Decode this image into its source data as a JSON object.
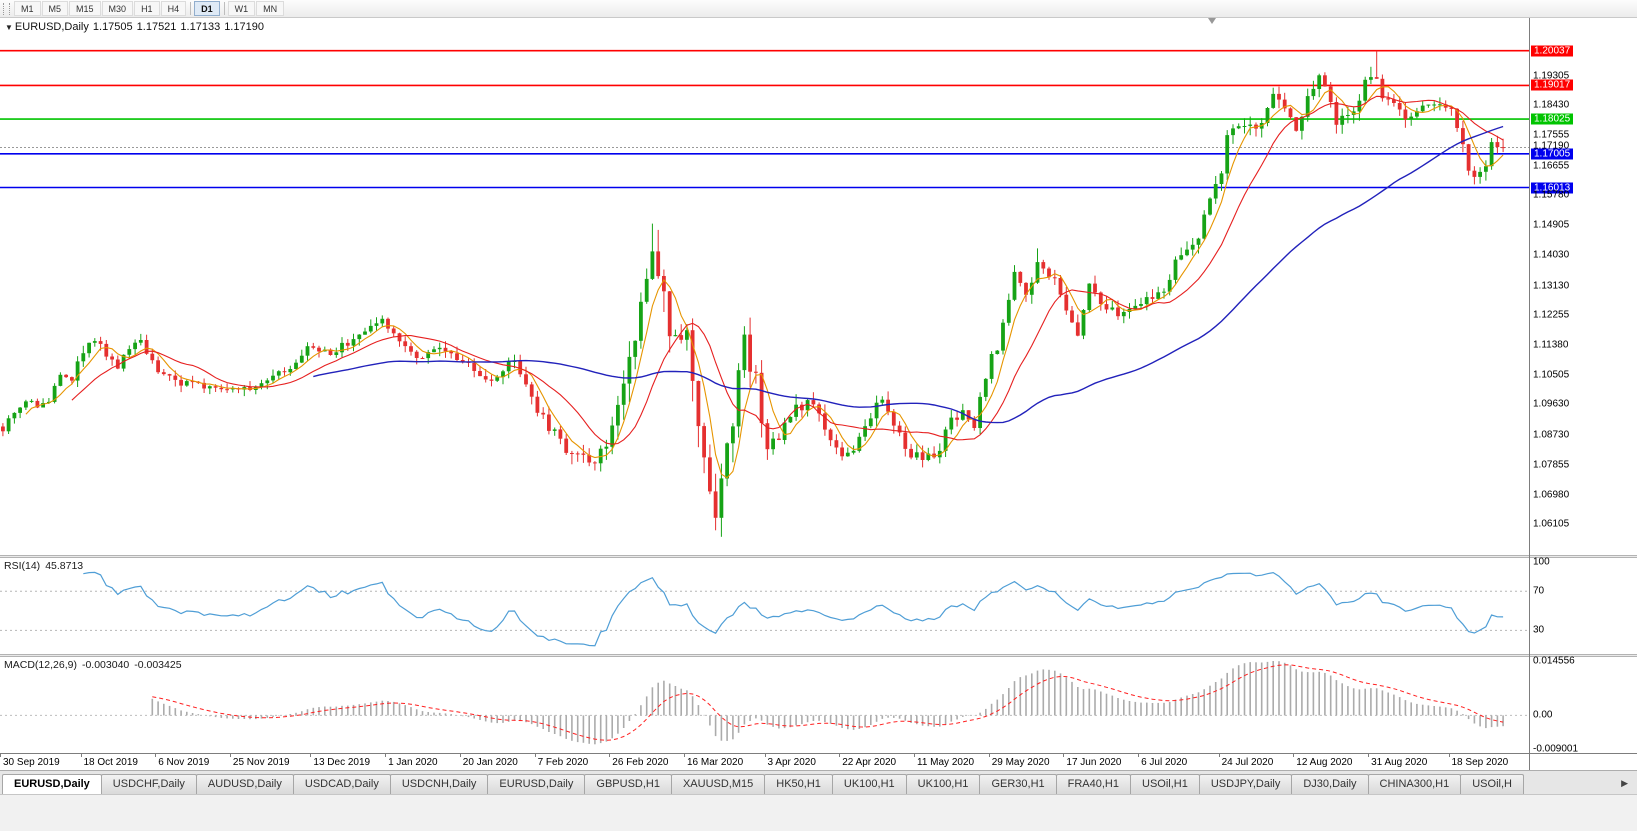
{
  "icons": {
    "chart_dropdown": "▼",
    "tab_scroll_right": "▶"
  },
  "toolbar": {
    "timeframes": [
      "M1",
      "M5",
      "M15",
      "M30",
      "H1",
      "H4",
      "D1",
      "W1",
      "MN"
    ],
    "active_timeframe": "D1",
    "separators_after": [
      "H4",
      "D1"
    ]
  },
  "chart": {
    "symbol_period": "EURUSD,Daily",
    "ohlc": {
      "open": "1.17505",
      "high": "1.17521",
      "low": "1.17133",
      "close": "1.17190"
    },
    "axis": {
      "labels": [
        {
          "text": "1.20037",
          "price": 1.20037,
          "type": "line-red"
        },
        {
          "text": "1.19305",
          "price": 1.19305,
          "type": "tick"
        },
        {
          "text": "1.19017",
          "price": 1.19017,
          "type": "line-red"
        },
        {
          "text": "1.18430",
          "price": 1.1843,
          "type": "tick"
        },
        {
          "text": "1.18025",
          "price": 1.18025,
          "type": "line-green"
        },
        {
          "text": "1.17555",
          "price": 1.17555,
          "type": "tick"
        },
        {
          "text": "1.17190",
          "price": 1.1719,
          "type": "bid"
        },
        {
          "text": "1.17005",
          "price": 1.17005,
          "type": "line-blue"
        },
        {
          "text": "1.16655",
          "price": 1.16655,
          "type": "tick"
        },
        {
          "text": "1.16013",
          "price": 1.16013,
          "type": "line-blue"
        },
        {
          "text": "1.15780",
          "price": 1.1578,
          "type": "tick"
        },
        {
          "text": "1.14905",
          "price": 1.14905,
          "type": "tick"
        },
        {
          "text": "1.14030",
          "price": 1.1403,
          "type": "tick"
        },
        {
          "text": "1.13130",
          "price": 1.1313,
          "type": "tick"
        },
        {
          "text": "1.12255",
          "price": 1.12255,
          "type": "tick"
        },
        {
          "text": "1.11380",
          "price": 1.1138,
          "type": "tick"
        },
        {
          "text": "1.10505",
          "price": 1.10505,
          "type": "tick"
        },
        {
          "text": "1.09630",
          "price": 1.0963,
          "type": "tick"
        },
        {
          "text": "1.08730",
          "price": 1.0873,
          "type": "tick"
        },
        {
          "text": "1.07855",
          "price": 1.07855,
          "type": "tick"
        },
        {
          "text": "1.06980",
          "price": 1.0698,
          "type": "tick"
        },
        {
          "text": "1.06105",
          "price": 1.06105,
          "type": "tick"
        }
      ]
    }
  },
  "rsi_panel": {
    "name": "RSI(14)",
    "value": "45.8713",
    "axis_labels": [
      {
        "text": "100",
        "v": 100
      },
      {
        "text": "70",
        "v": 70
      },
      {
        "text": "30",
        "v": 30
      }
    ]
  },
  "macd_panel": {
    "name": "MACD(12,26,9)",
    "value1": "-0.003040",
    "value2": "-0.003425",
    "axis_labels": [
      {
        "text": "0.014556",
        "v": 0.014556
      },
      {
        "text": "0.00",
        "v": 0
      },
      {
        "text": "-0.009001",
        "v": -0.009001
      }
    ]
  },
  "date_axis": [
    {
      "label": "30 Sep 2019",
      "bar": 0
    },
    {
      "label": "18 Oct 2019",
      "bar": 14
    },
    {
      "label": "6 Nov 2019",
      "bar": 27
    },
    {
      "label": "25 Nov 2019",
      "bar": 40
    },
    {
      "label": "13 Dec 2019",
      "bar": 54
    },
    {
      "label": "1 Jan 2020",
      "bar": 67
    },
    {
      "label": "20 Jan 2020",
      "bar": 80
    },
    {
      "label": "7 Feb 2020",
      "bar": 93
    },
    {
      "label": "26 Feb 2020",
      "bar": 106
    },
    {
      "label": "16 Mar 2020",
      "bar": 119
    },
    {
      "label": "3 Apr 2020",
      "bar": 133
    },
    {
      "label": "22 Apr 2020",
      "bar": 146
    },
    {
      "label": "11 May 2020",
      "bar": 159
    },
    {
      "label": "29 May 2020",
      "bar": 172
    },
    {
      "label": "17 Jun 2020",
      "bar": 185
    },
    {
      "label": "6 Jul 2020",
      "bar": 198
    },
    {
      "label": "24 Jul 2020",
      "bar": 212
    },
    {
      "label": "12 Aug 2020",
      "bar": 225
    },
    {
      "label": "31 Aug 2020",
      "bar": 238
    },
    {
      "label": "18 Sep 2020",
      "bar": 252
    }
  ],
  "tabs": {
    "items": [
      {
        "label": "EURUSD,Daily",
        "active": true
      },
      {
        "label": "USDCHF,Daily",
        "active": false
      },
      {
        "label": "AUDUSD,Daily",
        "active": false
      },
      {
        "label": "USDCAD,Daily",
        "active": false
      },
      {
        "label": "USDCNH,Daily",
        "active": false
      },
      {
        "label": "EURUSD,Daily",
        "active": false
      },
      {
        "label": "GBPUSD,H1",
        "active": false
      },
      {
        "label": "XAUUSD,M15",
        "active": false
      },
      {
        "label": "HK50,H1",
        "active": false
      },
      {
        "label": "UK100,H1",
        "active": false
      },
      {
        "label": "UK100,H1",
        "active": false
      },
      {
        "label": "GER30,H1",
        "active": false
      },
      {
        "label": "FRA40,H1",
        "active": false
      },
      {
        "label": "USOil,H1",
        "active": false
      },
      {
        "label": "USDJPY,Daily",
        "active": false
      },
      {
        "label": "DJ30,Daily",
        "active": false
      },
      {
        "label": "CHINA300,H1",
        "active": false
      },
      {
        "label": "USOil,H",
        "active": false
      }
    ]
  },
  "chart_data": {
    "type": "candlestick",
    "symbol": "EURUSD",
    "period": "Daily",
    "bars": 262,
    "price_range": {
      "max": 1.21,
      "min": 1.052
    },
    "colors": {
      "up": "#16a316",
      "down": "#e53030",
      "ma_fast": "#e69500",
      "ma_mid": "#e62020",
      "ma_slow": "#2222bb",
      "rsi": "#4f9ed6",
      "rsi_level": "#b6b6b6",
      "macd_hist": "#ababab",
      "macd_signal": "#ff2020",
      "macd_zero": "#bdbdbd",
      "hline_red": "#ff0000",
      "hline_green": "#00c400",
      "hline_blue": "#0000ee",
      "bid_line": "#999999"
    },
    "close_anchors": [
      [
        0,
        1.0898
      ],
      [
        1,
        1.0934
      ],
      [
        4,
        1.096
      ],
      [
        8,
        1.097
      ],
      [
        9,
        1.1004
      ],
      [
        10,
        1.1041
      ],
      [
        12,
        1.1035
      ],
      [
        14,
        1.1124
      ],
      [
        16,
        1.1149
      ],
      [
        20,
        1.108
      ],
      [
        24,
        1.1152
      ],
      [
        27,
        1.1068
      ],
      [
        31,
        1.1021
      ],
      [
        36,
        1.1021
      ],
      [
        40,
        1.1013
      ],
      [
        44,
        1.1018
      ],
      [
        49,
        1.106
      ],
      [
        53,
        1.113
      ],
      [
        54,
        1.1122
      ],
      [
        57,
        1.1112
      ],
      [
        63,
        1.1177
      ],
      [
        66,
        1.121
      ],
      [
        68,
        1.1172
      ],
      [
        72,
        1.1103
      ],
      [
        76,
        1.1128
      ],
      [
        80,
        1.1095
      ],
      [
        84,
        1.1024
      ],
      [
        89,
        1.1093
      ],
      [
        93,
        1.0946
      ],
      [
        98,
        1.083
      ],
      [
        102,
        1.0786
      ],
      [
        106,
        1.088
      ],
      [
        108,
        1.1026
      ],
      [
        110,
        1.1173
      ],
      [
        113,
        1.1449
      ],
      [
        115,
        1.1271
      ],
      [
        116,
        1.1184
      ],
      [
        119,
        1.1182
      ],
      [
        121,
        1.0915
      ],
      [
        123,
        1.0693
      ],
      [
        124,
        1.0637
      ],
      [
        125,
        1.0726
      ],
      [
        128,
        1.103
      ],
      [
        129,
        1.1141
      ],
      [
        131,
        1.1031
      ],
      [
        133,
        1.0808
      ],
      [
        137,
        1.093
      ],
      [
        140,
        1.098
      ],
      [
        144,
        1.0858
      ],
      [
        146,
        1.0822
      ],
      [
        148,
        1.0823
      ],
      [
        152,
        1.0955
      ],
      [
        153,
        1.098
      ],
      [
        157,
        1.0834
      ],
      [
        159,
        1.0808
      ],
      [
        162,
        1.0805
      ],
      [
        165,
        1.0916
      ],
      [
        167,
        1.0949
      ],
      [
        169,
        1.0897
      ],
      [
        170,
        1.0983
      ],
      [
        172,
        1.1101
      ],
      [
        173,
        1.1134
      ],
      [
        176,
        1.1338
      ],
      [
        178,
        1.129
      ],
      [
        180,
        1.1375
      ],
      [
        183,
        1.1323
      ],
      [
        187,
        1.1177
      ],
      [
        189,
        1.1306
      ],
      [
        191,
        1.125
      ],
      [
        194,
        1.1234
      ],
      [
        198,
        1.1271
      ],
      [
        202,
        1.13
      ],
      [
        205,
        1.1412
      ],
      [
        208,
        1.1446
      ],
      [
        210,
        1.1569
      ],
      [
        212,
        1.1656
      ],
      [
        213,
        1.175
      ],
      [
        215,
        1.179
      ],
      [
        217,
        1.1776
      ],
      [
        218,
        1.1762
      ],
      [
        221,
        1.1878
      ],
      [
        225,
        1.1783
      ],
      [
        229,
        1.1932
      ],
      [
        232,
        1.1797
      ],
      [
        235,
        1.183
      ],
      [
        237,
        1.1903
      ],
      [
        238,
        1.1935
      ],
      [
        239,
        1.191
      ],
      [
        241,
        1.185
      ],
      [
        243,
        1.1818
      ],
      [
        245,
        1.1808
      ],
      [
        247,
        1.183
      ],
      [
        249,
        1.1848
      ],
      [
        252,
        1.1838
      ],
      [
        253,
        1.1772
      ],
      [
        255,
        1.1661
      ],
      [
        257,
        1.1631
      ],
      [
        258,
        1.1663
      ],
      [
        259,
        1.1742
      ],
      [
        261,
        1.1719
      ]
    ],
    "volatility_anchors": [
      [
        0,
        0.0052
      ],
      [
        30,
        0.0046
      ],
      [
        60,
        0.0042
      ],
      [
        90,
        0.005
      ],
      [
        104,
        0.0085
      ],
      [
        110,
        0.013
      ],
      [
        118,
        0.016
      ],
      [
        126,
        0.015
      ],
      [
        132,
        0.01
      ],
      [
        140,
        0.0065
      ],
      [
        155,
        0.006
      ],
      [
        170,
        0.0055
      ],
      [
        180,
        0.0062
      ],
      [
        195,
        0.005
      ],
      [
        210,
        0.006
      ],
      [
        220,
        0.0062
      ],
      [
        232,
        0.0058
      ],
      [
        238,
        0.0075
      ],
      [
        246,
        0.005
      ],
      [
        255,
        0.0065
      ],
      [
        261,
        0.0055
      ]
    ],
    "extremes": [
      [
        113,
        "h",
        1.1495
      ],
      [
        124,
        "l",
        1.0636
      ],
      [
        180,
        "h",
        1.1422
      ],
      [
        239,
        "h",
        1.20037
      ],
      [
        257,
        "l",
        1.16126
      ],
      [
        261,
        "c",
        1.1719
      ]
    ],
    "moving_averages": [
      {
        "period": 5,
        "colorKey": "ma_fast"
      },
      {
        "period": 13,
        "colorKey": "ma_mid"
      },
      {
        "period": 55,
        "colorKey": "ma_slow"
      }
    ],
    "horizontal_lines": [
      {
        "price": 1.20037,
        "colorKey": "hline_red"
      },
      {
        "price": 1.19017,
        "colorKey": "hline_red"
      },
      {
        "price": 1.18025,
        "colorKey": "hline_green"
      },
      {
        "price": 1.17005,
        "colorKey": "hline_blue"
      },
      {
        "price": 1.16013,
        "colorKey": "hline_blue"
      }
    ],
    "bid_line": {
      "price": 1.1719
    },
    "rsi": {
      "period": 14,
      "levels": [
        70,
        30
      ],
      "display_range": [
        10,
        100
      ],
      "current": 45.8713
    },
    "macd": {
      "fast": 12,
      "slow": 26,
      "signal": 9,
      "range": [
        -0.009001,
        0.014556
      ],
      "current_macd": -0.00304,
      "current_signal": -0.003425
    }
  }
}
